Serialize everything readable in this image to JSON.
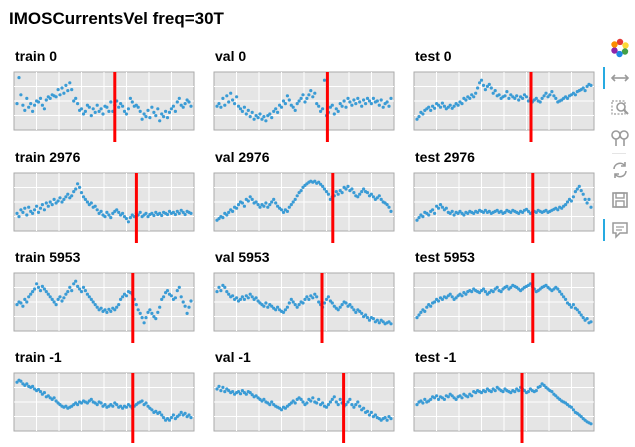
{
  "title": "IMOSCurrentsVel freq=30T",
  "colors": {
    "points": "#3a9bd5",
    "split_line": "#ff0000",
    "plot_bg": "#e5e5e5",
    "grid": "#ffffff",
    "frame": "#aaaaaa"
  },
  "toolbar": {
    "tools": [
      {
        "name": "bokeh-logo-icon",
        "active": false
      },
      {
        "name": "pan-icon",
        "active": true
      },
      {
        "name": "box-zoom-icon",
        "active": false
      },
      {
        "name": "wheel-zoom-icon",
        "active": false
      },
      {
        "name": "reset-icon",
        "active": false
      },
      {
        "name": "save-icon",
        "active": false
      },
      {
        "name": "hover-icon",
        "active": true
      }
    ]
  },
  "chart_data": [
    {
      "type": "scatter",
      "title": "train 0",
      "split": 0.56,
      "y": [
        0.45,
        0.95,
        0.62,
        0.42,
        0.32,
        0.55,
        0.38,
        0.45,
        0.3,
        0.42,
        0.5,
        0.48,
        0.55,
        0.42,
        0.35,
        0.52,
        0.58,
        0.55,
        0.62,
        0.6,
        0.58,
        0.72,
        0.62,
        0.75,
        0.65,
        0.8,
        0.7,
        0.85,
        0.72,
        0.5,
        0.55,
        0.45,
        0.32,
        0.35,
        0.25,
        0.3,
        0.42,
        0.38,
        0.22,
        0.35,
        0.28,
        0.42,
        0.3,
        0.35,
        0.25,
        0.4,
        0.38,
        0.3,
        0.48,
        0.3,
        0.42,
        0.5,
        0.38,
        0.45,
        0.4,
        0.3,
        0.25,
        0.35,
        0.55,
        0.48,
        0.4,
        0.42,
        0.38,
        0.3,
        0.15,
        0.25,
        0.2,
        0.32,
        0.18,
        0.38,
        0.28,
        0.22,
        0.35,
        0.12,
        0.25,
        0.2,
        0.3,
        0.18,
        0.28,
        0.35,
        0.4,
        0.3,
        0.48,
        0.55,
        0.42,
        0.38,
        0.45,
        0.52,
        0.48,
        0.4
      ]
    },
    {
      "type": "scatter",
      "title": "val 0",
      "split": 0.63,
      "y": [
        0.4,
        0.45,
        0.38,
        0.55,
        0.42,
        0.6,
        0.48,
        0.65,
        0.52,
        0.45,
        0.58,
        0.4,
        0.35,
        0.3,
        0.38,
        0.25,
        0.32,
        0.2,
        0.28,
        0.15,
        0.22,
        0.18,
        0.25,
        0.15,
        0.2,
        0.12,
        0.22,
        0.25,
        0.18,
        0.3,
        0.35,
        0.28,
        0.42,
        0.38,
        0.5,
        0.45,
        0.6,
        0.52,
        0.42,
        0.38,
        0.32,
        0.45,
        0.5,
        0.55,
        0.62,
        0.48,
        0.55,
        0.62,
        0.7,
        0.58,
        0.65,
        0.45,
        0.4,
        0.3,
        0.35,
        0.9,
        0.22,
        0.28,
        0.38,
        0.42,
        0.25,
        0.35,
        0.3,
        0.45,
        0.4,
        0.5,
        0.38,
        0.55,
        0.48,
        0.42,
        0.52,
        0.45,
        0.55,
        0.48,
        0.4,
        0.52,
        0.45,
        0.55,
        0.5,
        0.45,
        0.55,
        0.48,
        0.5,
        0.42,
        0.52,
        0.38,
        0.45,
        0.48,
        0.4,
        0.55
      ]
    },
    {
      "type": "scatter",
      "title": "test 0",
      "split": 0.65,
      "y": [
        0.15,
        0.2,
        0.28,
        0.25,
        0.32,
        0.35,
        0.38,
        0.32,
        0.4,
        0.36,
        0.45,
        0.42,
        0.38,
        0.46,
        0.4,
        0.35,
        0.38,
        0.42,
        0.36,
        0.4,
        0.45,
        0.42,
        0.48,
        0.45,
        0.55,
        0.52,
        0.58,
        0.55,
        0.62,
        0.58,
        0.65,
        0.75,
        0.85,
        0.9,
        0.8,
        0.72,
        0.78,
        0.82,
        0.75,
        0.65,
        0.7,
        0.6,
        0.62,
        0.55,
        0.58,
        0.6,
        0.68,
        0.55,
        0.62,
        0.58,
        0.55,
        0.6,
        0.52,
        0.58,
        0.55,
        0.62,
        0.58,
        0.5,
        0.55,
        0.48,
        0.52,
        0.55,
        0.5,
        0.48,
        0.55,
        0.6,
        0.65,
        0.58,
        0.62,
        0.68,
        0.6,
        0.55,
        0.48,
        0.5,
        0.52,
        0.55,
        0.58,
        0.55,
        0.6,
        0.62,
        0.65,
        0.62,
        0.68,
        0.7,
        0.72,
        0.75,
        0.7,
        0.78,
        0.82,
        0.8
      ]
    },
    {
      "type": "scatter",
      "title": "train 2976",
      "split": 0.68,
      "y": [
        0.28,
        0.22,
        0.35,
        0.3,
        0.38,
        0.25,
        0.4,
        0.32,
        0.28,
        0.35,
        0.42,
        0.3,
        0.38,
        0.45,
        0.35,
        0.48,
        0.42,
        0.5,
        0.45,
        0.55,
        0.48,
        0.52,
        0.58,
        0.5,
        0.55,
        0.6,
        0.65,
        0.58,
        0.62,
        0.7,
        0.75,
        0.85,
        0.78,
        0.68,
        0.6,
        0.55,
        0.5,
        0.45,
        0.48,
        0.4,
        0.42,
        0.35,
        0.28,
        0.32,
        0.25,
        0.22,
        0.3,
        0.25,
        0.2,
        0.28,
        0.32,
        0.35,
        0.3,
        0.25,
        0.28,
        0.22,
        0.18,
        0.12,
        0.2,
        0.25,
        0.22,
        0.28,
        0.25,
        0.3,
        0.22,
        0.25,
        0.28,
        0.22,
        0.26,
        0.28,
        0.24,
        0.3,
        0.26,
        0.28,
        0.24,
        0.3,
        0.28,
        0.26,
        0.32,
        0.28,
        0.3,
        0.26,
        0.32,
        0.28,
        0.34,
        0.3,
        0.26,
        0.32,
        0.3,
        0.28
      ]
    },
    {
      "type": "scatter",
      "title": "val 2976",
      "split": 0.66,
      "y": [
        0.15,
        0.18,
        0.22,
        0.2,
        0.28,
        0.25,
        0.3,
        0.35,
        0.32,
        0.4,
        0.38,
        0.45,
        0.5,
        0.48,
        0.42,
        0.55,
        0.52,
        0.6,
        0.55,
        0.48,
        0.5,
        0.45,
        0.4,
        0.45,
        0.42,
        0.48,
        0.4,
        0.45,
        0.5,
        0.55,
        0.48,
        0.42,
        0.38,
        0.35,
        0.3,
        0.35,
        0.32,
        0.4,
        0.45,
        0.5,
        0.55,
        0.62,
        0.68,
        0.72,
        0.78,
        0.82,
        0.85,
        0.88,
        0.9,
        0.88,
        0.9,
        0.86,
        0.88,
        0.84,
        0.8,
        0.75,
        0.7,
        0.65,
        0.55,
        0.6,
        0.62,
        0.7,
        0.65,
        0.72,
        0.68,
        0.78,
        0.75,
        0.8,
        0.72,
        0.75,
        0.68,
        0.62,
        0.6,
        0.65,
        0.7,
        0.75,
        0.7,
        0.68,
        0.62,
        0.65,
        0.6,
        0.55,
        0.58,
        0.62,
        0.55,
        0.5,
        0.48,
        0.45,
        0.4,
        0.32
      ]
    },
    {
      "type": "scatter",
      "title": "test 2976",
      "split": 0.66,
      "y": [
        0.15,
        0.2,
        0.25,
        0.22,
        0.3,
        0.28,
        0.25,
        0.32,
        0.35,
        0.28,
        0.42,
        0.38,
        0.45,
        0.4,
        0.35,
        0.38,
        0.3,
        0.28,
        0.32,
        0.25,
        0.3,
        0.28,
        0.32,
        0.28,
        0.25,
        0.3,
        0.28,
        0.32,
        0.3,
        0.28,
        0.32,
        0.3,
        0.34,
        0.32,
        0.3,
        0.34,
        0.3,
        0.32,
        0.28,
        0.3,
        0.32,
        0.34,
        0.3,
        0.32,
        0.28,
        0.3,
        0.34,
        0.32,
        0.3,
        0.34,
        0.32,
        0.3,
        0.28,
        0.32,
        0.3,
        0.34,
        0.36,
        0.32,
        0.28,
        0.3,
        0.32,
        0.3,
        0.34,
        0.32,
        0.3,
        0.32,
        0.34,
        0.3,
        0.32,
        0.34,
        0.36,
        0.38,
        0.35,
        0.4,
        0.38,
        0.42,
        0.45,
        0.5,
        0.55,
        0.52,
        0.6,
        0.7,
        0.75,
        0.8,
        0.72,
        0.65,
        0.55,
        0.48,
        0.55,
        0.4
      ]
    },
    {
      "type": "scatter",
      "title": "train 5953",
      "split": 0.66,
      "y": [
        0.45,
        0.5,
        0.48,
        0.42,
        0.55,
        0.5,
        0.6,
        0.65,
        0.7,
        0.75,
        0.85,
        0.78,
        0.72,
        0.8,
        0.75,
        0.7,
        0.65,
        0.6,
        0.55,
        0.5,
        0.45,
        0.55,
        0.6,
        0.52,
        0.58,
        0.65,
        0.7,
        0.78,
        0.72,
        0.85,
        0.9,
        0.8,
        0.75,
        0.7,
        0.78,
        0.72,
        0.65,
        0.6,
        0.55,
        0.5,
        0.45,
        0.4,
        0.35,
        0.38,
        0.32,
        0.35,
        0.3,
        0.36,
        0.32,
        0.38,
        0.35,
        0.4,
        0.45,
        0.55,
        0.6,
        0.65,
        0.62,
        0.7,
        0.68,
        0.65,
        0.55,
        0.45,
        0.35,
        0.28,
        0.2,
        0.1,
        0.2,
        0.3,
        0.35,
        0.28,
        0.22,
        0.18,
        0.3,
        0.4,
        0.55,
        0.6,
        0.68,
        0.72,
        0.65,
        0.62,
        0.55,
        0.58,
        0.72,
        0.78,
        0.6,
        0.5,
        0.42,
        0.28,
        0.4,
        0.52
      ]
    },
    {
      "type": "scatter",
      "title": "val 5953",
      "split": 0.6,
      "y": [
        0.7,
        0.78,
        0.72,
        0.82,
        0.78,
        0.7,
        0.65,
        0.6,
        0.62,
        0.55,
        0.58,
        0.52,
        0.55,
        0.6,
        0.55,
        0.62,
        0.58,
        0.65,
        0.6,
        0.55,
        0.58,
        0.52,
        0.48,
        0.45,
        0.42,
        0.48,
        0.4,
        0.45,
        0.42,
        0.38,
        0.35,
        0.4,
        0.35,
        0.32,
        0.3,
        0.35,
        0.4,
        0.48,
        0.55,
        0.5,
        0.45,
        0.4,
        0.45,
        0.5,
        0.48,
        0.55,
        0.6,
        0.55,
        0.62,
        0.58,
        0.65,
        0.6,
        0.5,
        0.45,
        0.4,
        0.48,
        0.55,
        0.6,
        0.52,
        0.48,
        0.42,
        0.38,
        0.35,
        0.4,
        0.45,
        0.5,
        0.48,
        0.42,
        0.45,
        0.4,
        0.35,
        0.3,
        0.35,
        0.32,
        0.28,
        0.22,
        0.25,
        0.2,
        0.15,
        0.2,
        0.18,
        0.12,
        0.15,
        0.1,
        0.15,
        0.12,
        0.08,
        0.1,
        0.12,
        0.08
      ]
    },
    {
      "type": "scatter",
      "title": "test 5953",
      "split": 0.66,
      "y": [
        0.2,
        0.25,
        0.3,
        0.35,
        0.32,
        0.4,
        0.45,
        0.42,
        0.48,
        0.5,
        0.55,
        0.52,
        0.58,
        0.55,
        0.6,
        0.58,
        0.62,
        0.65,
        0.6,
        0.55,
        0.58,
        0.62,
        0.65,
        0.62,
        0.68,
        0.65,
        0.7,
        0.72,
        0.7,
        0.75,
        0.72,
        0.7,
        0.68,
        0.72,
        0.75,
        0.7,
        0.65,
        0.68,
        0.72,
        0.7,
        0.75,
        0.78,
        0.72,
        0.7,
        0.75,
        0.78,
        0.8,
        0.75,
        0.78,
        0.82,
        0.8,
        0.78,
        0.75,
        0.72,
        0.75,
        0.78,
        0.8,
        0.82,
        0.85,
        0.8,
        0.75,
        0.7,
        0.72,
        0.75,
        0.78,
        0.8,
        0.82,
        0.78,
        0.75,
        0.72,
        0.75,
        0.78,
        0.75,
        0.7,
        0.65,
        0.6,
        0.55,
        0.48,
        0.45,
        0.4,
        0.45,
        0.38,
        0.35,
        0.3,
        0.25,
        0.2,
        0.15,
        0.18,
        0.1,
        0.12
      ]
    },
    {
      "type": "scatter",
      "title": "train -1",
      "split": 0.66,
      "y": [
        0.88,
        0.92,
        0.9,
        0.85,
        0.82,
        0.85,
        0.8,
        0.78,
        0.8,
        0.75,
        0.72,
        0.74,
        0.7,
        0.65,
        0.68,
        0.6,
        0.62,
        0.58,
        0.55,
        0.58,
        0.52,
        0.48,
        0.45,
        0.42,
        0.4,
        0.42,
        0.38,
        0.4,
        0.42,
        0.45,
        0.48,
        0.45,
        0.5,
        0.48,
        0.52,
        0.5,
        0.48,
        0.52,
        0.55,
        0.5,
        0.48,
        0.45,
        0.5,
        0.48,
        0.42,
        0.45,
        0.4,
        0.42,
        0.45,
        0.42,
        0.48,
        0.45,
        0.4,
        0.42,
        0.38,
        0.42,
        0.4,
        0.45,
        0.42,
        0.38,
        0.42,
        0.45,
        0.48,
        0.5,
        0.52,
        0.45,
        0.48,
        0.42,
        0.38,
        0.35,
        0.3,
        0.32,
        0.28,
        0.3,
        0.25,
        0.2,
        0.15,
        0.18,
        0.15,
        0.2,
        0.25,
        0.18,
        0.22,
        0.25,
        0.3,
        0.25,
        0.28,
        0.22,
        0.25,
        0.2
      ]
    },
    {
      "type": "scatter",
      "title": "val -1",
      "split": 0.72,
      "y": [
        0.75,
        0.8,
        0.72,
        0.78,
        0.7,
        0.75,
        0.72,
        0.68,
        0.7,
        0.65,
        0.68,
        0.7,
        0.66,
        0.72,
        0.68,
        0.65,
        0.7,
        0.68,
        0.64,
        0.6,
        0.62,
        0.58,
        0.55,
        0.52,
        0.55,
        0.5,
        0.48,
        0.45,
        0.5,
        0.45,
        0.42,
        0.4,
        0.38,
        0.35,
        0.4,
        0.38,
        0.42,
        0.45,
        0.48,
        0.52,
        0.48,
        0.55,
        0.58,
        0.55,
        0.5,
        0.45,
        0.48,
        0.55,
        0.52,
        0.58,
        0.5,
        0.48,
        0.55,
        0.45,
        0.48,
        0.42,
        0.4,
        0.45,
        0.5,
        0.55,
        0.6,
        0.5,
        0.45,
        0.55,
        0.48,
        0.42,
        0.45,
        0.5,
        0.55,
        0.45,
        0.4,
        0.45,
        0.5,
        0.42,
        0.35,
        0.38,
        0.3,
        0.32,
        0.25,
        0.3,
        0.22,
        0.25,
        0.2,
        0.18,
        0.15,
        0.18,
        0.2,
        0.15,
        0.22,
        0.18
      ]
    },
    {
      "type": "scatter",
      "title": "test -1",
      "split": 0.6,
      "y": [
        0.45,
        0.5,
        0.52,
        0.48,
        0.55,
        0.5,
        0.52,
        0.55,
        0.6,
        0.58,
        0.62,
        0.55,
        0.6,
        0.58,
        0.55,
        0.62,
        0.6,
        0.65,
        0.62,
        0.58,
        0.55,
        0.6,
        0.62,
        0.58,
        0.65,
        0.62,
        0.6,
        0.65,
        0.62,
        0.7,
        0.68,
        0.72,
        0.7,
        0.68,
        0.72,
        0.7,
        0.75,
        0.72,
        0.7,
        0.75,
        0.72,
        0.78,
        0.75,
        0.72,
        0.7,
        0.75,
        0.72,
        0.7,
        0.68,
        0.72,
        0.7,
        0.75,
        0.72,
        0.78,
        0.75,
        0.72,
        0.68,
        0.7,
        0.75,
        0.72,
        0.7,
        0.72,
        0.78,
        0.8,
        0.85,
        0.82,
        0.78,
        0.75,
        0.72,
        0.7,
        0.65,
        0.62,
        0.58,
        0.55,
        0.52,
        0.5,
        0.48,
        0.45,
        0.42,
        0.4,
        0.35,
        0.3,
        0.28,
        0.25,
        0.22,
        0.18,
        0.15,
        0.12,
        0.1,
        0.08
      ]
    }
  ]
}
